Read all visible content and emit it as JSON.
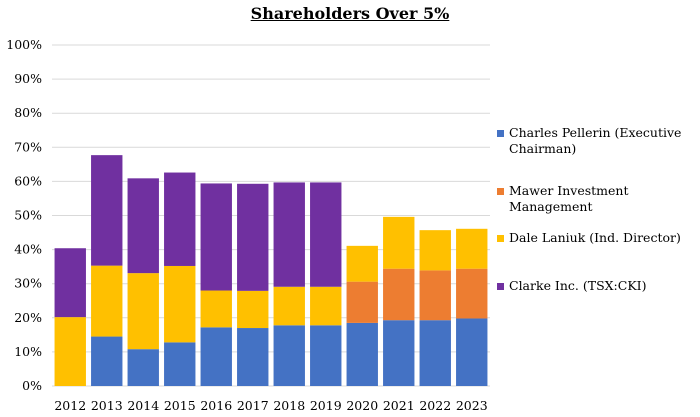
{
  "chart_data": {
    "type": "bar",
    "stacked": true,
    "title": "Shareholders Over 5%",
    "categories": [
      "2012",
      "2013",
      "2014",
      "2015",
      "2016",
      "2017",
      "2018",
      "2019",
      "2020",
      "2021",
      "2022",
      "2023"
    ],
    "series": [
      {
        "name": "Charles Pellerin  (Executive Chairman)",
        "color": "#4472C4",
        "values": [
          0,
          14.5,
          10.8,
          12.8,
          17.2,
          17.0,
          17.8,
          17.8,
          18.5,
          19.3,
          19.3,
          19.8
        ]
      },
      {
        "name": "Mawer Investment Management",
        "color": "#ED7D31",
        "values": [
          0,
          0,
          0,
          0,
          0,
          0,
          0,
          0,
          12.1,
          15.1,
          14.6,
          14.6
        ]
      },
      {
        "name": "Dale Laniuk (Ind. Director)",
        "color": "#FFC000",
        "values": [
          20.2,
          20.8,
          22.3,
          22.4,
          10.8,
          10.9,
          11.3,
          11.3,
          10.5,
          15.2,
          11.8,
          11.7
        ]
      },
      {
        "name": "Clarke Inc. (TSX:CKI)",
        "color": "#7030A0",
        "values": [
          20.2,
          32.4,
          27.8,
          27.4,
          31.4,
          31.4,
          30.6,
          30.6,
          0,
          0,
          0,
          0
        ]
      }
    ],
    "y_ticks": [
      "0%",
      "10%",
      "20%",
      "30%",
      "40%",
      "50%",
      "60%",
      "70%",
      "80%",
      "90%",
      "100%"
    ],
    "ylim": [
      0,
      100
    ],
    "grid": true,
    "legend": "right"
  }
}
